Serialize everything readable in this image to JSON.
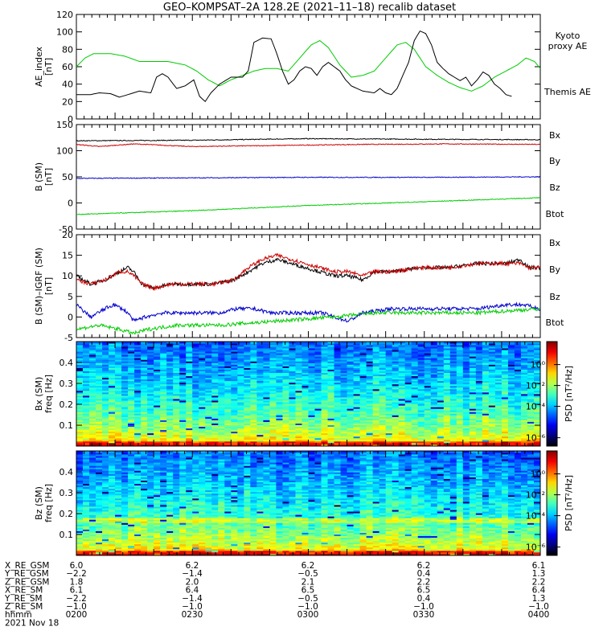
{
  "title": "GEO–KOMPSAT–2A 128.2E (2021–11–18) recalib dataset",
  "colors": {
    "black": "#000000",
    "green": "#00cc00",
    "red": "#cc0000",
    "blue": "#0000cc",
    "kyoto_label": "#00cc00"
  },
  "chart_data": [
    {
      "type": "line",
      "panel": "AE index",
      "ylabel": "AE_index\n[nT]",
      "ylim": [
        0,
        120
      ],
      "yticks": [
        0,
        20,
        40,
        60,
        80,
        100,
        120
      ],
      "x": "minutes from 0200 UT",
      "series": [
        {
          "name": "Kyoto proxy AE",
          "color": "green",
          "points": [
            [
              0,
              60
            ],
            [
              3,
              70
            ],
            [
              6,
              75
            ],
            [
              12,
              75
            ],
            [
              17,
              72
            ],
            [
              22,
              66
            ],
            [
              32,
              66
            ],
            [
              38,
              62
            ],
            [
              42,
              55
            ],
            [
              46,
              45
            ],
            [
              50,
              38
            ],
            [
              54,
              45
            ],
            [
              58,
              50
            ],
            [
              62,
              55
            ],
            [
              66,
              58
            ],
            [
              70,
              58
            ],
            [
              74,
              55
            ],
            [
              78,
              70
            ],
            [
              82,
              85
            ],
            [
              85,
              90
            ],
            [
              88,
              82
            ],
            [
              92,
              62
            ],
            [
              96,
              48
            ],
            [
              100,
              50
            ],
            [
              104,
              55
            ],
            [
              108,
              70
            ],
            [
              112,
              85
            ],
            [
              115,
              88
            ],
            [
              118,
              80
            ],
            [
              122,
              60
            ],
            [
              126,
              50
            ],
            [
              130,
              42
            ],
            [
              134,
              36
            ],
            [
              138,
              32
            ],
            [
              142,
              38
            ],
            [
              146,
              48
            ],
            [
              150,
              55
            ],
            [
              154,
              62
            ],
            [
              157,
              70
            ],
            [
              160,
              66
            ],
            [
              162,
              58
            ]
          ]
        },
        {
          "name": "Themis AE",
          "color": "black",
          "points": [
            [
              0,
              28
            ],
            [
              5,
              28
            ],
            [
              8,
              30
            ],
            [
              12,
              29
            ],
            [
              15,
              25
            ],
            [
              18,
              28
            ],
            [
              22,
              32
            ],
            [
              26,
              30
            ],
            [
              28,
              48
            ],
            [
              30,
              52
            ],
            [
              32,
              48
            ],
            [
              35,
              35
            ],
            [
              38,
              38
            ],
            [
              41,
              45
            ],
            [
              43,
              26
            ],
            [
              45,
              20
            ],
            [
              47,
              30
            ],
            [
              50,
              40
            ],
            [
              54,
              48
            ],
            [
              58,
              48
            ],
            [
              60,
              55
            ],
            [
              62,
              88
            ],
            [
              65,
              93
            ],
            [
              68,
              92
            ],
            [
              70,
              75
            ],
            [
              72,
              55
            ],
            [
              74,
              40
            ],
            [
              76,
              45
            ],
            [
              78,
              55
            ],
            [
              80,
              60
            ],
            [
              82,
              58
            ],
            [
              84,
              50
            ],
            [
              86,
              60
            ],
            [
              88,
              65
            ],
            [
              90,
              60
            ],
            [
              92,
              55
            ],
            [
              94,
              45
            ],
            [
              96,
              38
            ],
            [
              100,
              32
            ],
            [
              104,
              30
            ],
            [
              106,
              35
            ],
            [
              108,
              30
            ],
            [
              110,
              28
            ],
            [
              112,
              35
            ],
            [
              114,
              50
            ],
            [
              116,
              65
            ],
            [
              118,
              90
            ],
            [
              120,
              101
            ],
            [
              122,
              98
            ],
            [
              124,
              85
            ],
            [
              126,
              65
            ],
            [
              128,
              58
            ],
            [
              130,
              52
            ],
            [
              132,
              48
            ],
            [
              134,
              44
            ],
            [
              136,
              48
            ],
            [
              138,
              38
            ],
            [
              140,
              45
            ],
            [
              142,
              54
            ],
            [
              144,
              50
            ],
            [
              146,
              40
            ],
            [
              148,
              35
            ],
            [
              150,
              28
            ],
            [
              152,
              26
            ]
          ]
        }
      ],
      "legend": [
        {
          "text": "Kyoto",
          "color": "green"
        },
        {
          "text": "proxy AE",
          "color": "green"
        },
        {
          "text": "Themis AE",
          "color": "black"
        }
      ]
    },
    {
      "type": "line",
      "panel": "B (SM)",
      "ylabel": "B (SM)\n[nT]",
      "ylim": [
        -50,
        150
      ],
      "yticks": [
        -50,
        0,
        50,
        100,
        150
      ],
      "series": [
        {
          "name": "Btot",
          "color": "black",
          "points": [
            [
              0,
              119
            ],
            [
              40,
              120
            ],
            [
              80,
              123
            ],
            [
              120,
              122
            ],
            [
              162,
              121
            ]
          ]
        },
        {
          "name": "Bz",
          "color": "red",
          "points": [
            [
              0,
              112
            ],
            [
              8,
              108
            ],
            [
              20,
              113
            ],
            [
              40,
              108
            ],
            [
              70,
              110
            ],
            [
              100,
              112
            ],
            [
              130,
              113
            ],
            [
              162,
              112
            ]
          ]
        },
        {
          "name": "Bx",
          "color": "blue",
          "points": [
            [
              0,
              47
            ],
            [
              40,
              48
            ],
            [
              80,
              49
            ],
            [
              120,
              49
            ],
            [
              162,
              50
            ]
          ]
        },
        {
          "name": "By",
          "color": "green",
          "points": [
            [
              0,
              -22
            ],
            [
              40,
              -15
            ],
            [
              80,
              -5
            ],
            [
              120,
              2
            ],
            [
              162,
              10
            ]
          ]
        }
      ],
      "legend": [
        {
          "text": "Bx",
          "color": "blue"
        },
        {
          "text": "By",
          "color": "green"
        },
        {
          "text": "Bz",
          "color": "red"
        },
        {
          "text": "Btot",
          "color": "black"
        }
      ]
    },
    {
      "type": "line",
      "panel": "B (SM) - IGRF (SM)",
      "ylabel": "B (SM)–IGRF (SM)\n[nT]",
      "ylim": [
        -5,
        20
      ],
      "yticks": [
        -5,
        0,
        5,
        10,
        15,
        20
      ],
      "series": [
        {
          "name": "Btot",
          "color": "black",
          "points": [
            [
              0,
              10
            ],
            [
              5,
              8
            ],
            [
              10,
              9
            ],
            [
              15,
              11
            ],
            [
              18,
              12
            ],
            [
              20,
              11
            ],
            [
              23,
              8
            ],
            [
              27,
              7
            ],
            [
              33,
              8
            ],
            [
              40,
              8
            ],
            [
              48,
              8
            ],
            [
              55,
              9
            ],
            [
              60,
              11
            ],
            [
              65,
              13
            ],
            [
              70,
              14
            ],
            [
              75,
              13
            ],
            [
              80,
              12
            ],
            [
              85,
              11
            ],
            [
              90,
              10
            ],
            [
              95,
              10
            ],
            [
              100,
              9
            ],
            [
              104,
              11
            ],
            [
              110,
              11
            ],
            [
              120,
              12
            ],
            [
              130,
              12
            ],
            [
              140,
              13
            ],
            [
              150,
              13
            ],
            [
              155,
              14
            ],
            [
              158,
              12
            ],
            [
              162,
              12
            ]
          ]
        },
        {
          "name": "Bz",
          "color": "red",
          "points": [
            [
              0,
              9
            ],
            [
              5,
              8
            ],
            [
              10,
              9
            ],
            [
              15,
              11
            ],
            [
              18,
              11
            ],
            [
              20,
              10
            ],
            [
              23,
              8
            ],
            [
              27,
              7
            ],
            [
              33,
              8
            ],
            [
              40,
              8
            ],
            [
              48,
              8
            ],
            [
              55,
              9
            ],
            [
              60,
              12
            ],
            [
              65,
              14
            ],
            [
              70,
              15
            ],
            [
              75,
              14
            ],
            [
              80,
              13
            ],
            [
              85,
              12
            ],
            [
              90,
              11
            ],
            [
              95,
              11
            ],
            [
              100,
              10
            ],
            [
              104,
              11
            ],
            [
              110,
              11
            ],
            [
              120,
              12
            ],
            [
              130,
              12
            ],
            [
              140,
              13
            ],
            [
              150,
              13
            ],
            [
              155,
              13
            ],
            [
              158,
              12
            ],
            [
              162,
              12
            ]
          ]
        },
        {
          "name": "Bx",
          "color": "blue",
          "points": [
            [
              0,
              3
            ],
            [
              5,
              0
            ],
            [
              10,
              2
            ],
            [
              13,
              3
            ],
            [
              16,
              2
            ],
            [
              18,
              1
            ],
            [
              20,
              -1
            ],
            [
              24,
              0
            ],
            [
              30,
              1
            ],
            [
              40,
              1
            ],
            [
              50,
              1
            ],
            [
              56,
              2
            ],
            [
              62,
              2
            ],
            [
              68,
              1
            ],
            [
              75,
              1
            ],
            [
              80,
              1
            ],
            [
              86,
              1
            ],
            [
              90,
              0
            ],
            [
              95,
              -1
            ],
            [
              100,
              1
            ],
            [
              110,
              2
            ],
            [
              120,
              2
            ],
            [
              130,
              2
            ],
            [
              140,
              2
            ],
            [
              150,
              3
            ],
            [
              156,
              3
            ],
            [
              162,
              2
            ]
          ]
        },
        {
          "name": "By",
          "color": "green",
          "points": [
            [
              0,
              -3
            ],
            [
              8,
              -2
            ],
            [
              15,
              -3
            ],
            [
              20,
              -4
            ],
            [
              25,
              -3
            ],
            [
              35,
              -2
            ],
            [
              50,
              -2
            ],
            [
              70,
              -1
            ],
            [
              90,
              0
            ],
            [
              105,
              1
            ],
            [
              120,
              1
            ],
            [
              140,
              1
            ],
            [
              162,
              2
            ]
          ]
        }
      ],
      "legend": [
        {
          "text": "Bx",
          "color": "blue"
        },
        {
          "text": "By",
          "color": "green"
        },
        {
          "text": "Bz",
          "color": "red"
        },
        {
          "text": "Btot",
          "color": "black"
        }
      ]
    },
    {
      "type": "heatmap",
      "panel": "Bx (SM) spectrogram",
      "ylabel": "Bx (SM)\nfreq [Hz]",
      "ylim": [
        0,
        0.5
      ],
      "yticks": [
        0.1,
        0.2,
        0.3,
        0.4
      ],
      "colorbar": {
        "label": "PSD [nT²/Hz]",
        "ticks": [
          "10⁰",
          "10⁻²",
          "10⁻⁴",
          "10⁻⁶"
        ],
        "scale": "log"
      }
    },
    {
      "type": "heatmap",
      "panel": "Bz (SM) spectrogram",
      "ylabel": "Bz (SM)\nfreq [Hz]",
      "ylim": [
        0,
        0.5
      ],
      "yticks": [
        0.1,
        0.2,
        0.3,
        0.4
      ],
      "colorbar": {
        "label": "PSD [nT²/Hz]",
        "ticks": [
          "10⁰",
          "10⁻²",
          "10⁻⁴",
          "10⁻⁶"
        ],
        "scale": "log"
      }
    }
  ],
  "ephemeris": {
    "rows": [
      {
        "label": "X_RE_GSM",
        "values": [
          "6.0",
          "6.2",
          "6.2",
          "6.2",
          "6.1"
        ]
      },
      {
        "label": "Y_RE_GSM",
        "values": [
          "−2.2",
          "−1.4",
          "−0.5",
          "0.4",
          "1.3"
        ]
      },
      {
        "label": "Z_RE_GSM",
        "values": [
          "1.8",
          "2.0",
          "2.1",
          "2.2",
          "2.2"
        ]
      },
      {
        "label": "X_RE_SM",
        "values": [
          "6.1",
          "6.4",
          "6.5",
          "6.5",
          "6.4"
        ]
      },
      {
        "label": "Y_RE_SM",
        "values": [
          "−2.2",
          "−1.4",
          "−0.5",
          "0.4",
          "1.3"
        ]
      },
      {
        "label": "Z_RE_SM",
        "values": [
          "−1.0",
          "−1.0",
          "−1.0",
          "−1.0",
          "−1.0"
        ]
      },
      {
        "label": "hhmm",
        "values": [
          "0200",
          "0230",
          "0300",
          "0330",
          "0400"
        ]
      }
    ],
    "date": "2021 Nov 18"
  }
}
